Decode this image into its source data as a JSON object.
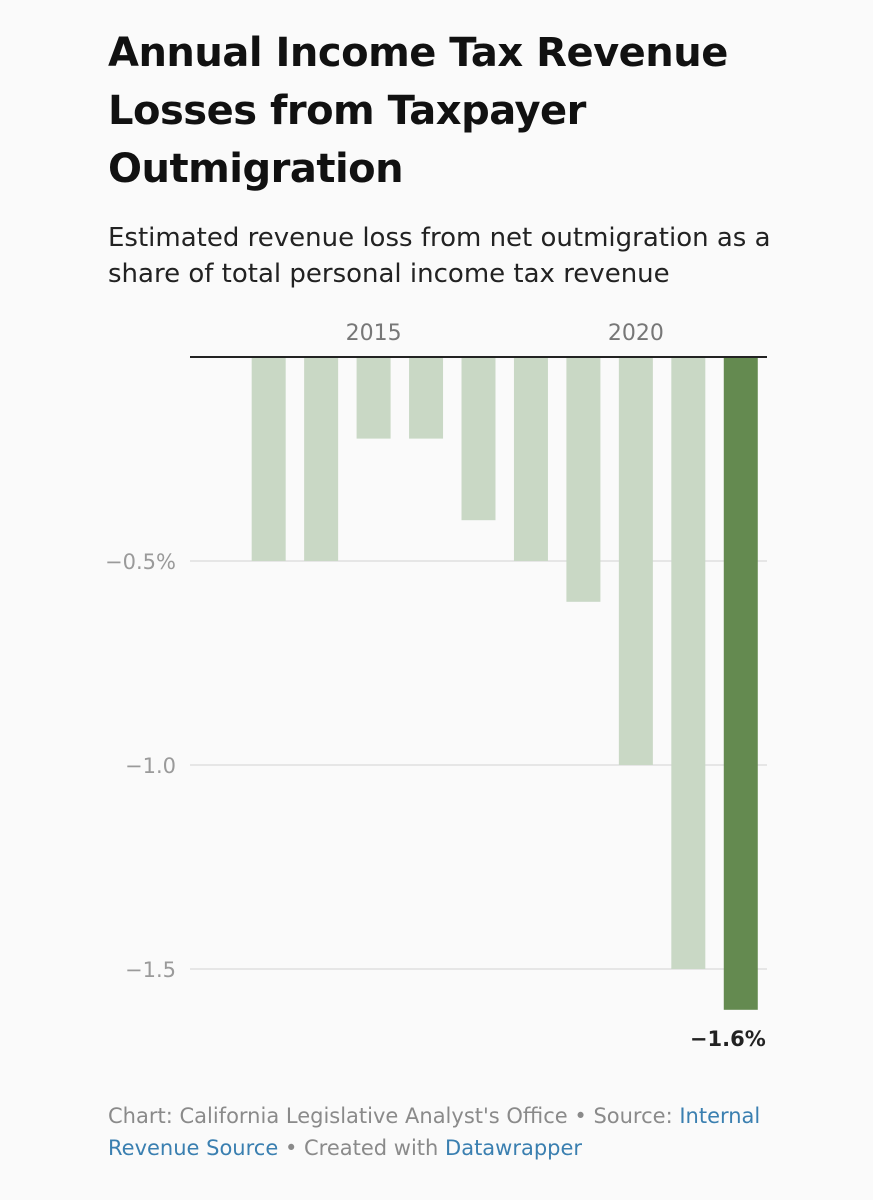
{
  "header": {
    "title": "Annual Income Tax Revenue Losses from Taxpayer Outmigration",
    "subtitle": "Estimated revenue loss from net outmigration as a share of total personal income tax revenue"
  },
  "footer": {
    "chart_prefix": "Chart: ",
    "chart_org": "California Legislative Analyst's Office",
    "separator": " • ",
    "source_prefix": "Source: ",
    "source_link": "Internal Revenue Source",
    "created_prefix": "Created with ",
    "created_link": "Datawrapper"
  },
  "colors": {
    "bar": "#c9d8c5",
    "highlight": "#648a50",
    "grid": "#e6e6e6",
    "axis_text": "#9a9a9a",
    "baseline": "#222222",
    "link": "#3a7fb0"
  },
  "chart_data": {
    "type": "bar",
    "title": "Annual Income Tax Revenue Losses from Taxpayer Outmigration",
    "subtitle": "Estimated revenue loss from net outmigration as a share of total personal income tax revenue",
    "categories": [
      "2012",
      "2013",
      "2014",
      "2015",
      "2016",
      "2017",
      "2018",
      "2019",
      "2020",
      "2021",
      "2022"
    ],
    "values": [
      0,
      -0.5,
      -0.5,
      -0.2,
      -0.2,
      -0.4,
      -0.5,
      -0.6,
      -1.0,
      -1.5,
      -1.6
    ],
    "highlight_index": 10,
    "x_tick_labels": [
      {
        "category": "2015",
        "label": "2015"
      },
      {
        "category": "2020",
        "label": "2020"
      }
    ],
    "y_ticks": [
      {
        "value": -0.5,
        "label": "−0.5%"
      },
      {
        "value": -1.0,
        "label": "−1.0"
      },
      {
        "value": -1.5,
        "label": "−1.5"
      }
    ],
    "ylim": [
      -1.6,
      0
    ],
    "value_label": {
      "category": "2022",
      "label": "−1.6%"
    },
    "xlabel": "",
    "ylabel": "",
    "grid": true
  }
}
